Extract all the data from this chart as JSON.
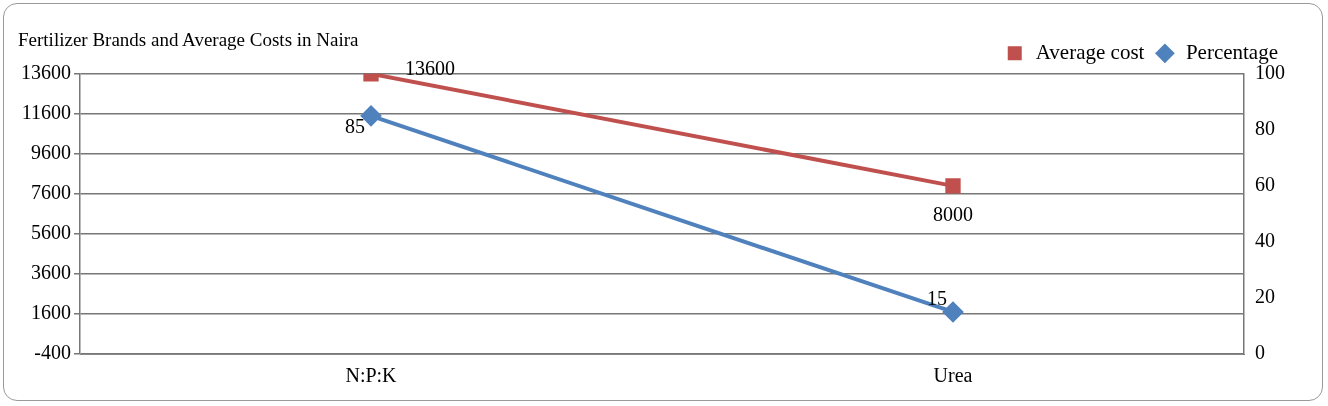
{
  "chart_data": {
    "type": "line",
    "title": "Fertilizer Brands and Average Costs in Naira",
    "categories": [
      "N:P:K",
      "Urea"
    ],
    "series": [
      {
        "name": "Average cost",
        "color": "#c0504d",
        "values": [
          13600,
          8000
        ],
        "marker": "square"
      },
      {
        "name": "Percentage",
        "color": "#4f81bd",
        "values": [
          85,
          15
        ],
        "axis": "y2",
        "marker": "diamond"
      }
    ],
    "ylim": [
      -400,
      13600
    ],
    "yticks": [
      -400,
      1600,
      3600,
      5600,
      7600,
      9600,
      11600,
      13600
    ],
    "y2lim": [
      0,
      100
    ],
    "y2ticks": [
      0,
      20,
      40,
      60,
      80,
      100
    ],
    "grid": "y",
    "legend": "top right",
    "data_labels": true,
    "line_style": "solid"
  }
}
